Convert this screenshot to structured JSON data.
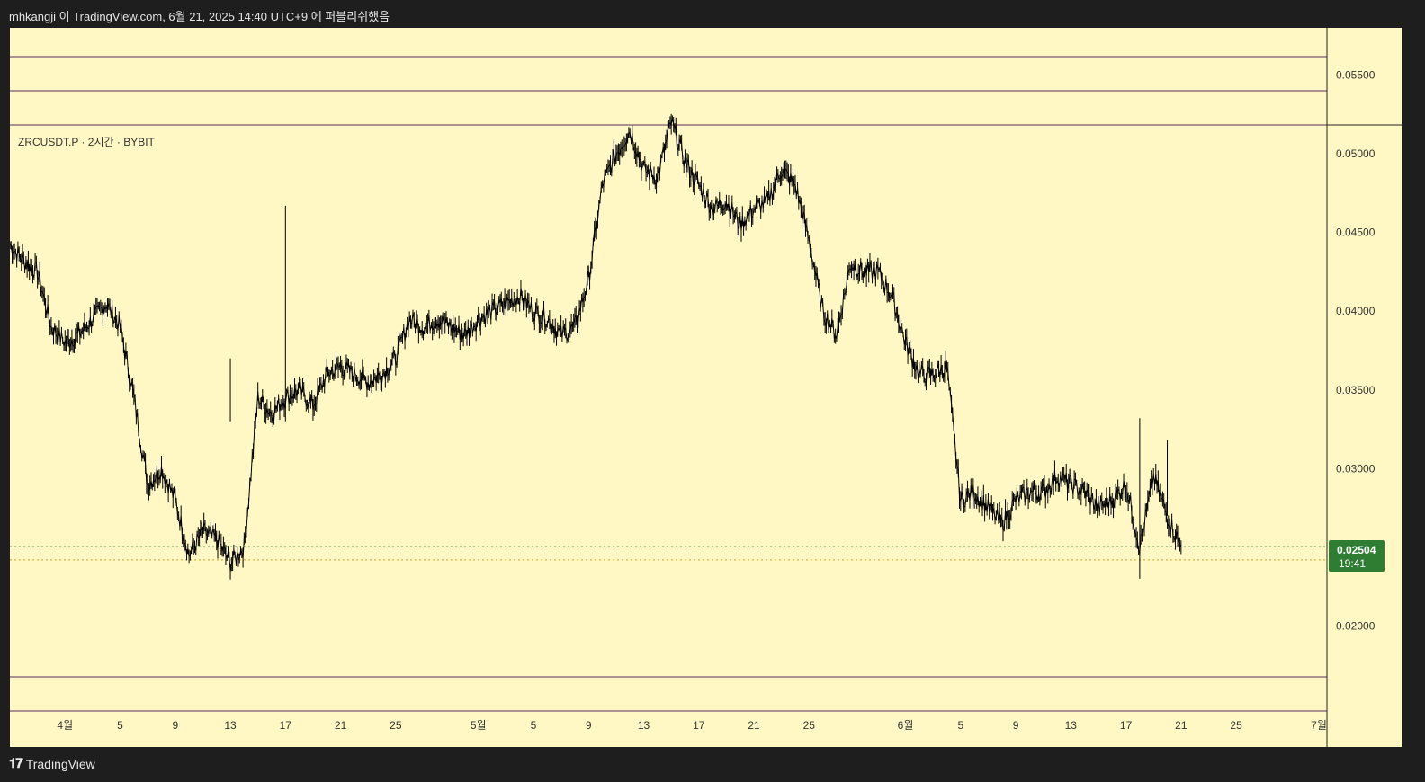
{
  "header": {
    "publish_text": "mhkangji 이 TradingView.com, 6월 21, 2025 14:40 UTC+9 에 퍼블리쉬했음"
  },
  "symbol_label": "ZRCUSDT.P · 2시간 · BYBIT",
  "footer": {
    "brand": "TradingView"
  },
  "colors": {
    "background": "#fff8c4",
    "candle": "#000000",
    "price_tag": "#2e7d32",
    "dotted_line": "#d4a017",
    "frame_line": "#5c2a5c"
  },
  "price_tag": {
    "price": "0.02504",
    "countdown": "19:41"
  },
  "chart_data": {
    "type": "line",
    "title": "ZRCUSDT.P · 2시간 · BYBIT",
    "x_tick_labels": [
      "4월",
      "5",
      "9",
      "13",
      "17",
      "21",
      "25",
      "5월",
      "5",
      "9",
      "13",
      "17",
      "21",
      "25",
      "6월",
      "5",
      "9",
      "13",
      "17",
      "21",
      "25",
      "7월"
    ],
    "y_tick_labels": [
      "0.05500",
      "0.05000",
      "0.04500",
      "0.04000",
      "0.03500",
      "0.03000",
      "0.02000"
    ],
    "y_ticks": [
      0.055,
      0.05,
      0.045,
      0.04,
      0.035,
      0.03,
      0.02
    ],
    "ylim": [
      0.0146,
      0.058
    ],
    "current_price": 0.02504,
    "reference_price": 0.0242,
    "series": [
      {
        "x": [
          "2025-03-28",
          "2025-03-29",
          "2025-03-30",
          "2025-03-31",
          "2025-04-01",
          "2025-04-02",
          "2025-04-03",
          "2025-04-04",
          "2025-04-05",
          "2025-04-06",
          "2025-04-07",
          "2025-04-08",
          "2025-04-09",
          "2025-04-10",
          "2025-04-11",
          "2025-04-12",
          "2025-04-13",
          "2025-04-14",
          "2025-04-15",
          "2025-04-16",
          "2025-04-17",
          "2025-04-18",
          "2025-04-19",
          "2025-04-20",
          "2025-04-21",
          "2025-04-22",
          "2025-04-23",
          "2025-04-24",
          "2025-04-25",
          "2025-04-26",
          "2025-04-27",
          "2025-04-28",
          "2025-04-29",
          "2025-04-30",
          "2025-05-01",
          "2025-05-02",
          "2025-05-03",
          "2025-05-04",
          "2025-05-05",
          "2025-05-06",
          "2025-05-07",
          "2025-05-08",
          "2025-05-09",
          "2025-05-10",
          "2025-05-11",
          "2025-05-12",
          "2025-05-13",
          "2025-05-14",
          "2025-05-15",
          "2025-05-16",
          "2025-05-17",
          "2025-05-18",
          "2025-05-19",
          "2025-05-20",
          "2025-05-21",
          "2025-05-22",
          "2025-05-23",
          "2025-05-24",
          "2025-05-25",
          "2025-05-26",
          "2025-05-27",
          "2025-05-28",
          "2025-05-29",
          "2025-05-30",
          "2025-05-31",
          "2025-06-01",
          "2025-06-02",
          "2025-06-03",
          "2025-06-04",
          "2025-06-05",
          "2025-06-06",
          "2025-06-07",
          "2025-06-08",
          "2025-06-09",
          "2025-06-10",
          "2025-06-11",
          "2025-06-12",
          "2025-06-13",
          "2025-06-14",
          "2025-06-15",
          "2025-06-16",
          "2025-06-17",
          "2025-06-18",
          "2025-06-19",
          "2025-06-20",
          "2025-06-21"
        ],
        "y": [
          0.0442,
          0.0432,
          0.0425,
          0.039,
          0.038,
          0.0385,
          0.0395,
          0.0405,
          0.039,
          0.0345,
          0.029,
          0.03,
          0.028,
          0.0245,
          0.026,
          0.0255,
          0.024,
          0.025,
          0.0345,
          0.0335,
          0.0345,
          0.035,
          0.034,
          0.036,
          0.0365,
          0.036,
          0.0355,
          0.036,
          0.037,
          0.0395,
          0.039,
          0.0395,
          0.039,
          0.0385,
          0.0395,
          0.04,
          0.0405,
          0.041,
          0.04,
          0.0395,
          0.0385,
          0.039,
          0.042,
          0.048,
          0.05,
          0.0515,
          0.049,
          0.0485,
          0.052,
          0.0495,
          0.048,
          0.0465,
          0.047,
          0.0455,
          0.0465,
          0.047,
          0.049,
          0.048,
          0.0445,
          0.04,
          0.0385,
          0.043,
          0.0425,
          0.0425,
          0.041,
          0.038,
          0.036,
          0.036,
          0.0365,
          0.028,
          0.0285,
          0.0275,
          0.0265,
          0.028,
          0.0285,
          0.0285,
          0.0295,
          0.029,
          0.0285,
          0.0275,
          0.028,
          0.029,
          0.025,
          0.0295,
          0.027,
          0.025
        ]
      }
    ]
  }
}
